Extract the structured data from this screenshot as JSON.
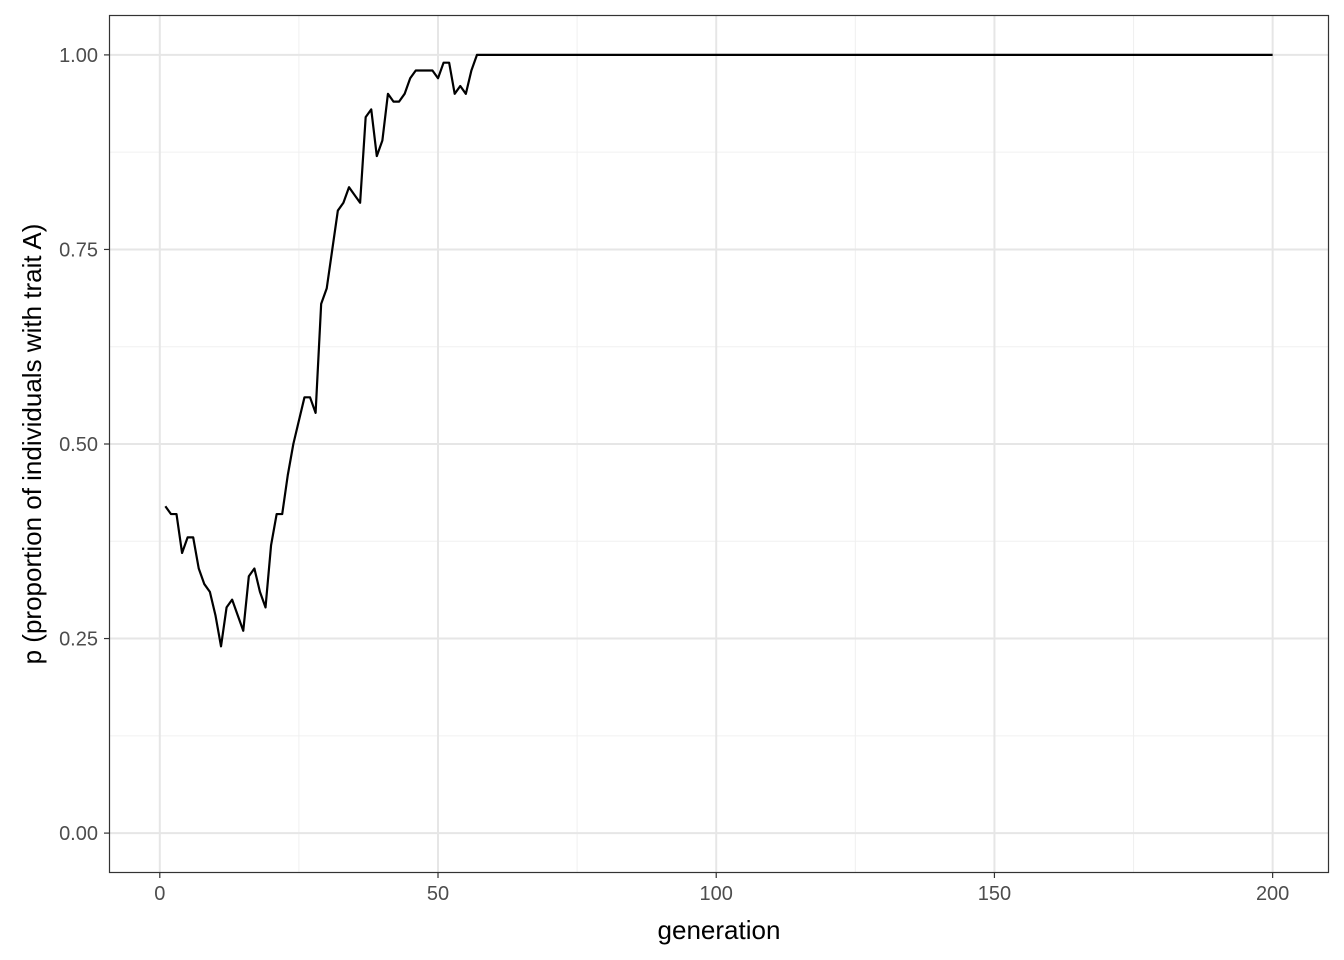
{
  "chart_data": {
    "type": "line",
    "title": "",
    "xlabel": "generation",
    "ylabel": "p (proportion of individuals with trait A)",
    "xlim": [
      -8.95,
      209.95
    ],
    "ylim": [
      -0.05,
      1.05
    ],
    "x_ticks": [
      0,
      50,
      100,
      150,
      200
    ],
    "x_tick_labels": [
      "0",
      "50",
      "100",
      "150",
      "200"
    ],
    "x_minor_ticks": [
      25,
      75,
      125,
      175
    ],
    "y_ticks": [
      0,
      0.25,
      0.5,
      0.75,
      1
    ],
    "y_tick_labels": [
      "0.00",
      "0.25",
      "0.50",
      "0.75",
      "1.00"
    ],
    "y_minor_ticks": [
      0.125,
      0.375,
      0.625,
      0.875
    ],
    "grid": true,
    "legend": "none",
    "series": [
      {
        "color": "#000000",
        "x": [
          1,
          2,
          3,
          4,
          5,
          6,
          7,
          8,
          9,
          10,
          11,
          12,
          13,
          14,
          15,
          16,
          17,
          18,
          19,
          20,
          21,
          22,
          23,
          24,
          25,
          26,
          27,
          28,
          29,
          30,
          31,
          32,
          33,
          34,
          35,
          36,
          37,
          38,
          39,
          40,
          41,
          42,
          43,
          44,
          45,
          46,
          47,
          48,
          49,
          50,
          51,
          52,
          53,
          54,
          55,
          56,
          57,
          200
        ],
        "y": [
          0.42,
          0.41,
          0.41,
          0.36,
          0.38,
          0.38,
          0.34,
          0.32,
          0.31,
          0.28,
          0.24,
          0.29,
          0.3,
          0.28,
          0.26,
          0.33,
          0.34,
          0.31,
          0.29,
          0.37,
          0.41,
          0.41,
          0.46,
          0.5,
          0.53,
          0.56,
          0.56,
          0.54,
          0.68,
          0.7,
          0.75,
          0.8,
          0.81,
          0.83,
          0.82,
          0.81,
          0.92,
          0.93,
          0.87,
          0.89,
          0.95,
          0.94,
          0.94,
          0.95,
          0.97,
          0.98,
          0.98,
          0.98,
          0.98,
          0.97,
          0.99,
          0.99,
          0.95,
          0.96,
          0.95,
          0.98,
          1.0,
          1.0
        ]
      }
    ]
  }
}
